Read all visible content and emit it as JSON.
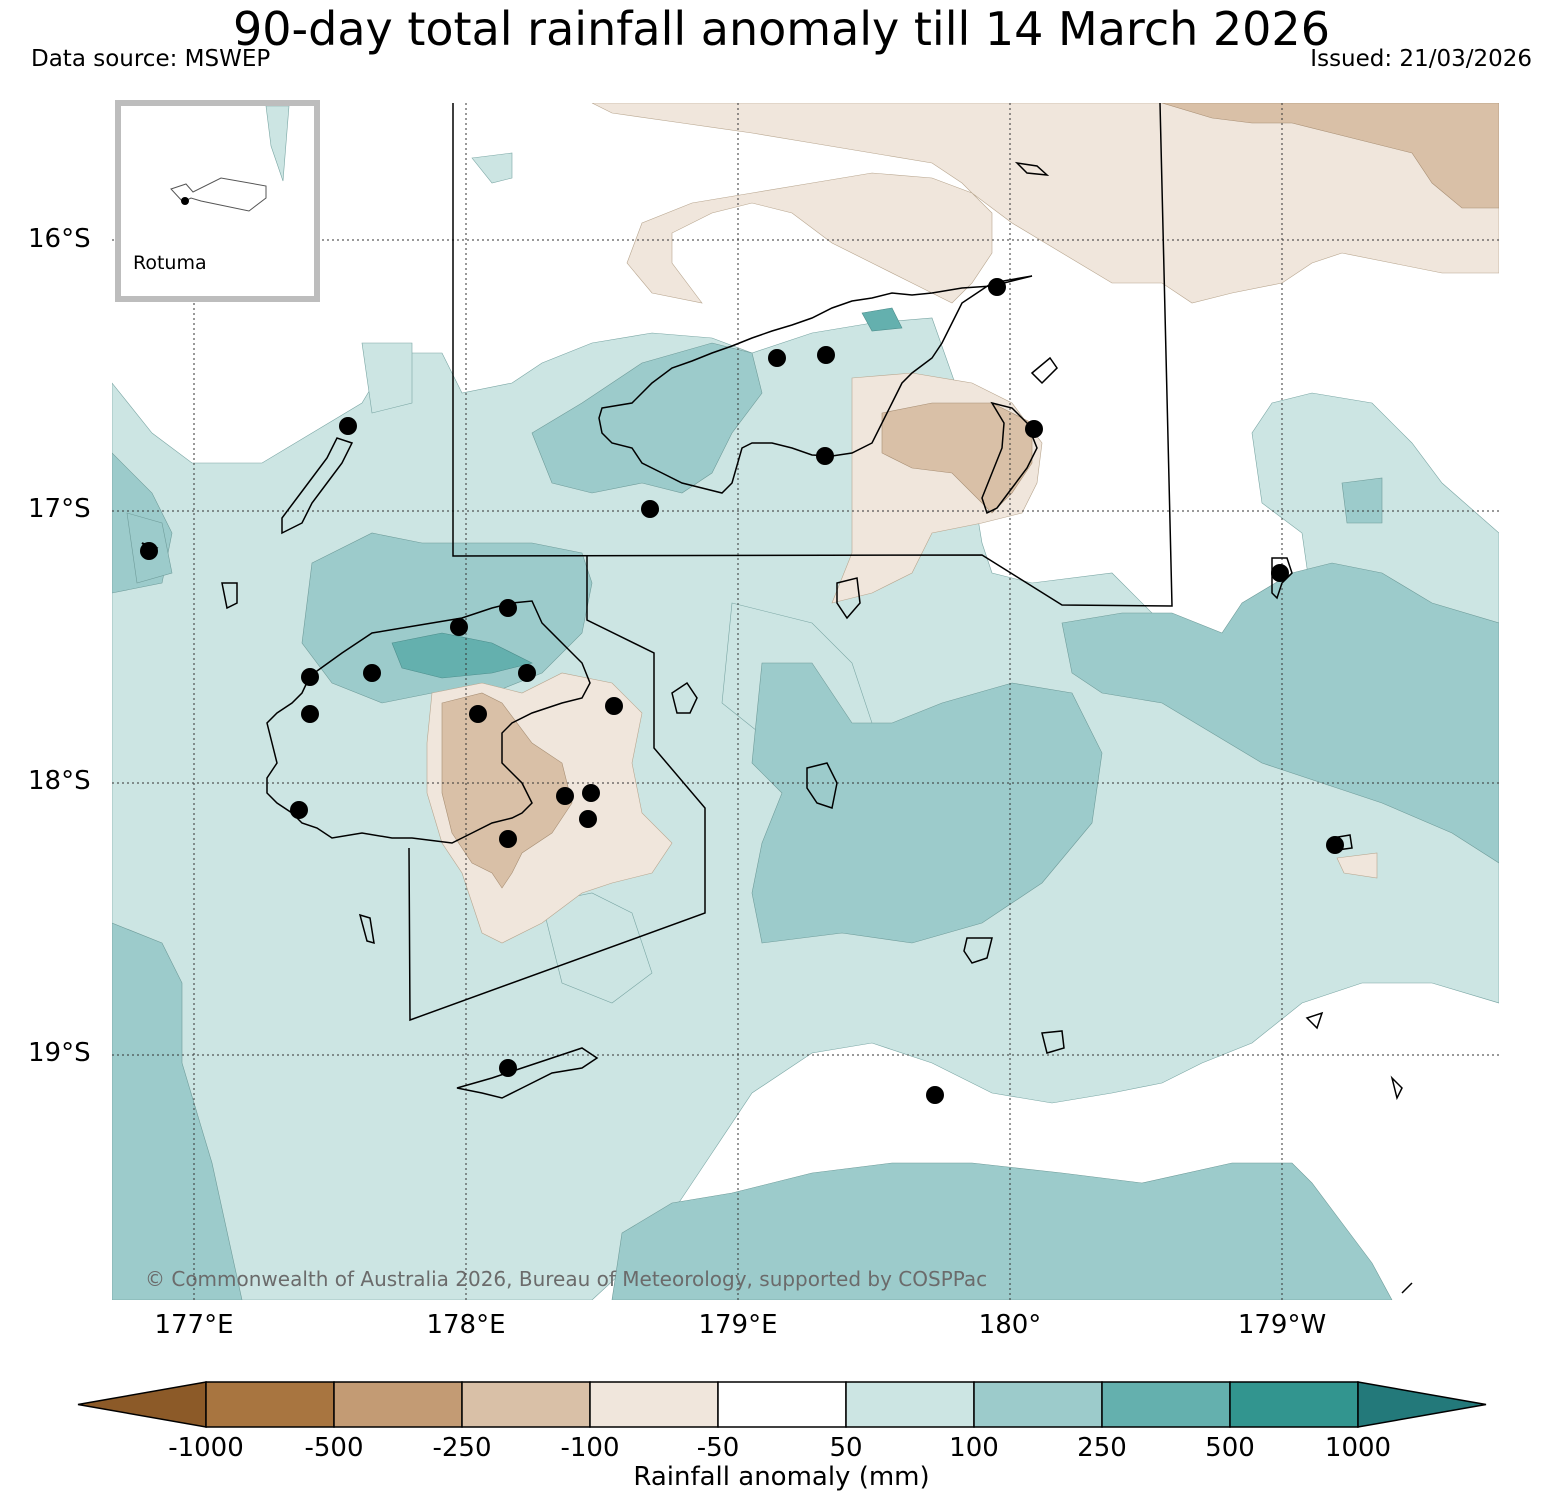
{
  "title": "90-day total rainfall anomaly till 14 March 2026",
  "data_source": "Data source: MSWEP",
  "issued": "Issued: 21/03/2026",
  "lat_labels": [
    "16°S",
    "17°S",
    "18°S",
    "19°S"
  ],
  "lon_labels": [
    "177°E",
    "178°E",
    "179°E",
    "180°",
    "179°W"
  ],
  "inset_label": "Rotuma",
  "copyright": "© Commonwealth of Australia 2026, Bureau of Meteorology, supported by COSPPac",
  "colorbar": {
    "label": "Rainfall anomaly (mm)",
    "ticks": [
      "-1000",
      "-500",
      "-250",
      "-100",
      "-50",
      "50",
      "100",
      "250",
      "500",
      "1000"
    ],
    "colors": [
      "#8c5a28",
      "#a87540",
      "#c39b74",
      "#d9c0a7",
      "#f0e6dc",
      "#ffffff",
      "#cce5e3",
      "#9ccbcb",
      "#64b0ae",
      "#32958f",
      "#23797a"
    ]
  },
  "legend_colors": {
    "wet_light": "#cce5e3",
    "wet_mid": "#9ccbcb",
    "wet_high": "#64b0ae",
    "dry_light": "#f0e6dc",
    "dry_mid": "#d9c0a7"
  }
}
